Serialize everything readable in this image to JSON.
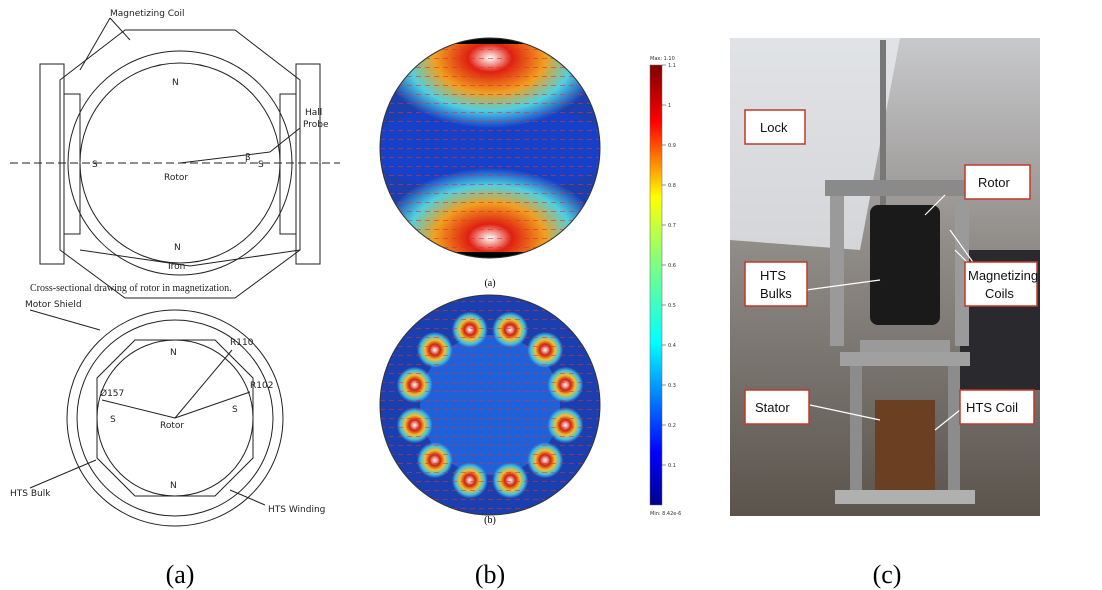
{
  "panel_a": {
    "top_drawing": {
      "magnetizing_coil": "Magnetizing Coil",
      "north_top": "N",
      "hall_probe_line1": "Hall",
      "hall_probe_line2": "Probe",
      "south_left": "S",
      "rotor": "Rotor",
      "beta": "β",
      "south_right": "S",
      "north_bottom": "N",
      "iron": "Iron"
    },
    "caption": "Cross-sectional drawing of rotor in magnetization.",
    "bottom_drawing": {
      "motor_shield": "Motor Shield",
      "north_top": "N",
      "r110": "R110",
      "r102": "R102",
      "d157": "Ø157",
      "south_left": "S",
      "rotor": "Rotor",
      "south_right": "S",
      "hts_bulk": "HTS Bulk",
      "north_bottom": "N",
      "hts_winding": "HTS Winding"
    }
  },
  "panel_b": {
    "sub_a": "(a)",
    "sub_b": "(b)",
    "colorbar": {
      "max": "Max: 1.10",
      "min": "Min: 8.42e-6",
      "ticks": [
        1.1,
        1,
        0.9,
        0.8,
        0.7,
        0.6,
        0.5,
        0.4,
        0.3,
        0.2,
        0.1
      ]
    }
  },
  "panel_c": {
    "lock": "Lock",
    "rotor": "Rotor",
    "hts_bulks_line1": "HTS",
    "hts_bulks_line2": "Bulks",
    "magnetizing_coils_line1": "Magnetizing",
    "magnetizing_coils_line2": "Coils",
    "stator": "Stator",
    "hts_coil": "HTS Coil"
  },
  "captions": [
    "(a)",
    "(b)",
    "(c)"
  ]
}
